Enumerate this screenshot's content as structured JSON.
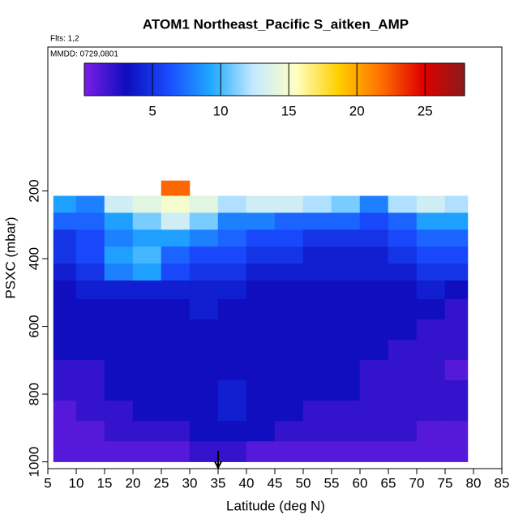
{
  "chart_data": {
    "type": "heatmap",
    "title": "ATOM1 Northeast_Pacific S_aitken_AMP",
    "subtitle": "Flts: 1,2",
    "annotation": "MMDD: 0729,0801",
    "x_label": "Latitude (deg N)",
    "y_label": "PSXC (mbar)",
    "xlim": [
      5,
      85
    ],
    "xticks": [
      5,
      10,
      15,
      20,
      25,
      30,
      35,
      40,
      45,
      50,
      55,
      60,
      65,
      70,
      75,
      80,
      85
    ],
    "ylim": [
      1020,
      -225
    ],
    "yticks": [
      200,
      400,
      600,
      800,
      1000
    ],
    "arrow_latitude": 35,
    "zlim": [
      0,
      27.9
    ],
    "zticks": [
      5,
      10,
      15,
      20,
      25
    ],
    "colormap": [
      "#7a1fe6",
      "#0d0dbe",
      "#1a4cff",
      "#1fa8ff",
      "#c4eaff",
      "#ffffc4",
      "#ffd000",
      "#ff7200",
      "#e00000",
      "#8b1a1a"
    ],
    "x_edges": [
      6,
      10,
      15,
      20,
      25,
      30,
      35,
      40,
      45,
      50,
      55,
      60,
      65,
      70,
      75,
      79
    ],
    "y_edges": [
      170,
      215,
      265,
      315,
      365,
      415,
      465,
      520,
      580,
      640,
      700,
      760,
      820,
      880,
      940,
      1000
    ],
    "z": [
      [
        null,
        null,
        null,
        null,
        22,
        null,
        null,
        null,
        null,
        null,
        null,
        null,
        null,
        null,
        null
      ],
      [
        9,
        8,
        13,
        14,
        15,
        14,
        12,
        13,
        13,
        12,
        11,
        8,
        12,
        13,
        12
      ],
      [
        7,
        7,
        9,
        11,
        13,
        11,
        8,
        8,
        7,
        7,
        7,
        6,
        7,
        9,
        9
      ],
      [
        5,
        6,
        8,
        9,
        9,
        8,
        7,
        6,
        6,
        5,
        5,
        5,
        6,
        7,
        7
      ],
      [
        5,
        6,
        9,
        10,
        7,
        6,
        6,
        5,
        5,
        4,
        4,
        4,
        5,
        6,
        6
      ],
      [
        4,
        5,
        8,
        9,
        6,
        5,
        5,
        4,
        4,
        4,
        4,
        4,
        4,
        5,
        5
      ],
      [
        3,
        4,
        4,
        4,
        4,
        4,
        4,
        3,
        3,
        3,
        3,
        3,
        3,
        4,
        3
      ],
      [
        3,
        3,
        3,
        3,
        3,
        4,
        3,
        3,
        3,
        3,
        3,
        3,
        3,
        3,
        2
      ],
      [
        3,
        3,
        3,
        3,
        3,
        3,
        3,
        3,
        3,
        3,
        3,
        3,
        3,
        2,
        2
      ],
      [
        3,
        3,
        3,
        3,
        3,
        3,
        3,
        3,
        3,
        3,
        3,
        3,
        2,
        2,
        2
      ],
      [
        2,
        2,
        3,
        3,
        3,
        3,
        3,
        3,
        3,
        3,
        3,
        2,
        2,
        2,
        1
      ],
      [
        2,
        2,
        3,
        3,
        3,
        3,
        4,
        3,
        3,
        3,
        3,
        2,
        2,
        2,
        2
      ],
      [
        1,
        2,
        2,
        3,
        3,
        3,
        4,
        3,
        3,
        2,
        2,
        2,
        2,
        2,
        2
      ],
      [
        1,
        1,
        2,
        2,
        2,
        3,
        3,
        3,
        2,
        2,
        2,
        2,
        2,
        1,
        1
      ],
      [
        1,
        1,
        1,
        1,
        1,
        2,
        2,
        1,
        1,
        1,
        1,
        1,
        1,
        1,
        1
      ]
    ]
  }
}
